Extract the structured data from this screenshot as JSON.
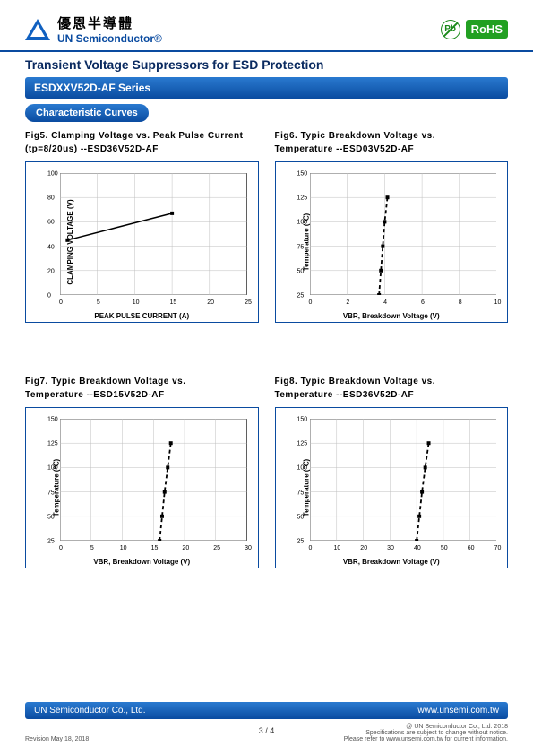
{
  "header": {
    "company_cn": "優恩半導體",
    "company_en": "UN Semiconductor®",
    "pb_label": "Pb",
    "rohs_label": "RoHS"
  },
  "title": "Transient Voltage Suppressors for ESD Protection",
  "series": "ESDXXV52D-AF Series",
  "section": "Characteristic Curves",
  "charts": {
    "fig5": {
      "title_l1": "Fig5. Clamping Voltage vs. Peak Pulse Current",
      "title_l2": "(tp=8/20us) --ESD36V52D-AF",
      "type": "line",
      "xlabel": "PEAK PULSE CURRENT (A)",
      "ylabel": "CLAMPING VOLTAGE (V)",
      "xlim": [
        0,
        25
      ],
      "ylim": [
        0,
        100
      ],
      "xticks": [
        0,
        5,
        10,
        15,
        20,
        25
      ],
      "yticks": [
        0,
        20,
        40,
        60,
        80,
        100
      ],
      "grid_color": "#bfbfbf",
      "line_color": "#000000",
      "line_width": 1.5,
      "line_style": "solid",
      "points": [
        [
          1,
          45
        ],
        [
          15,
          67
        ]
      ]
    },
    "fig6": {
      "title_l1": "Fig6. Typic Breakdown Voltage vs.",
      "title_l2": "Temperature --ESD03V52D-AF",
      "type": "line",
      "xlabel": "VBR, Breakdown Voltage (V)",
      "ylabel": "Temperature (℃)",
      "xlim": [
        0,
        10
      ],
      "ylim": [
        25,
        150
      ],
      "xticks": [
        0,
        2,
        4,
        6,
        8,
        10
      ],
      "yticks": [
        25,
        50,
        75,
        100,
        125,
        150
      ],
      "grid_color": "#bfbfbf",
      "line_color": "#000000",
      "line_width": 1.8,
      "line_style": "dashed",
      "points": [
        [
          3.7,
          25
        ],
        [
          3.8,
          50
        ],
        [
          3.9,
          75
        ],
        [
          4.0,
          100
        ],
        [
          4.15,
          125
        ]
      ]
    },
    "fig7": {
      "title_l1": "Fig7. Typic Breakdown Voltage vs.",
      "title_l2": "Temperature --ESD15V52D-AF",
      "type": "line",
      "xlabel": "VBR, Breakdown Voltage (V)",
      "ylabel": "Temperature (℃)",
      "xlim": [
        0,
        30
      ],
      "ylim": [
        25,
        150
      ],
      "xticks": [
        0,
        5,
        10,
        15,
        20,
        25,
        30
      ],
      "yticks": [
        25,
        50,
        75,
        100,
        125,
        150
      ],
      "grid_color": "#bfbfbf",
      "line_color": "#000000",
      "line_width": 1.8,
      "line_style": "dashed",
      "points": [
        [
          16.0,
          25
        ],
        [
          16.4,
          50
        ],
        [
          16.8,
          75
        ],
        [
          17.3,
          100
        ],
        [
          17.8,
          125
        ]
      ]
    },
    "fig8": {
      "title_l1": "Fig8. Typic Breakdown Voltage vs.",
      "title_l2": "Temperature --ESD36V52D-AF",
      "type": "line",
      "xlabel": "VBR, Breakdown Voltage (V)",
      "ylabel": "Temperature (℃)",
      "xlim": [
        0,
        70
      ],
      "ylim": [
        25,
        150
      ],
      "xticks": [
        0,
        10,
        20,
        30,
        40,
        50,
        60,
        70
      ],
      "yticks": [
        25,
        50,
        75,
        100,
        125,
        150
      ],
      "grid_color": "#bfbfbf",
      "line_color": "#000000",
      "line_width": 1.8,
      "line_style": "dashed",
      "points": [
        [
          40.0,
          25
        ],
        [
          41.0,
          50
        ],
        [
          42.0,
          75
        ],
        [
          43.2,
          100
        ],
        [
          44.5,
          125
        ]
      ]
    }
  },
  "footer": {
    "company": "UN Semiconductor Co., Ltd.",
    "url": "www.unsemi.com.tw",
    "revision": "Revision May 18, 2018",
    "page": "3 / 4",
    "copyright": "@ UN Semiconductor Co., Ltd.   2018",
    "fine1": "Specifications are subject to change without notice.",
    "fine2": "Please refer to www.unsemi.com.tw for current information."
  }
}
